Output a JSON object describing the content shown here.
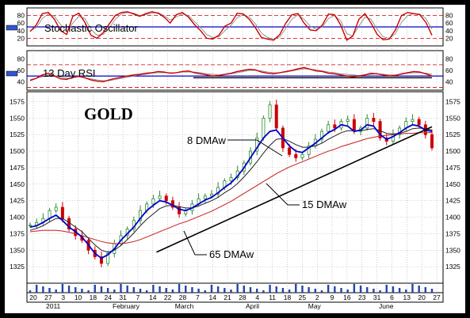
{
  "chart_data": [
    {
      "type": "line",
      "panel": "stochastic",
      "label": "Stochastic Oscillator",
      "yticks": [
        20,
        40,
        60,
        80
      ],
      "ylim": [
        0,
        100
      ],
      "reference_lines": [
        20,
        50,
        80
      ],
      "series": [
        {
          "values": [
            38,
            55,
            85,
            88,
            70,
            40,
            30,
            78,
            86,
            62,
            28,
            20,
            35,
            58,
            80,
            88,
            90,
            84,
            78,
            85,
            90,
            86,
            76,
            60,
            82,
            88,
            76,
            56,
            40,
            20,
            18,
            28,
            52,
            60,
            86,
            84,
            70,
            48,
            22,
            18,
            15,
            30,
            60,
            82,
            85,
            60,
            42,
            40,
            55,
            84,
            82,
            55,
            15,
            26,
            70,
            85,
            60,
            30,
            16,
            18,
            42,
            80,
            88,
            85,
            82,
            62,
            28
          ]
        },
        {
          "values": [
            40,
            48,
            72,
            84,
            78,
            56,
            38,
            60,
            78,
            72,
            44,
            28,
            30,
            48,
            70,
            84,
            88,
            86,
            80,
            82,
            86,
            88,
            80,
            68,
            76,
            84,
            80,
            64,
            48,
            30,
            22,
            24,
            40,
            54,
            74,
            82,
            76,
            58,
            34,
            22,
            18,
            24,
            46,
            70,
            82,
            70,
            52,
            44,
            50,
            72,
            80,
            66,
            32,
            26,
            52,
            76,
            70,
            44,
            24,
            20,
            32,
            62,
            80,
            85,
            84,
            72,
            44
          ]
        }
      ]
    },
    {
      "type": "line",
      "panel": "rsi",
      "label": "13 Day RSI",
      "yticks": [
        40,
        60,
        80
      ],
      "ylim": [
        25,
        95
      ],
      "reference_lines": [
        30,
        50,
        70
      ],
      "support_line": 47,
      "series": [
        {
          "values": [
            42,
            46,
            52,
            55,
            50,
            45,
            44,
            48,
            50,
            47,
            43,
            41,
            40,
            43,
            46,
            48,
            50,
            52,
            53,
            55,
            56,
            58,
            57,
            55,
            56,
            58,
            59,
            56,
            54,
            52,
            50,
            51,
            53,
            55,
            58,
            60,
            62,
            61,
            57,
            55,
            54,
            56,
            58,
            60,
            63,
            65,
            62,
            59,
            58,
            55,
            54,
            52,
            50,
            49,
            50,
            52,
            55,
            54,
            52,
            50,
            51,
            54,
            56,
            58,
            57,
            54,
            50
          ]
        },
        {
          "values": [
            44,
            46,
            49,
            52,
            51,
            48,
            46,
            47,
            48,
            47,
            45,
            43,
            42,
            42,
            44,
            46,
            48,
            50,
            52,
            53,
            55,
            56,
            56,
            56,
            56,
            57,
            57,
            57,
            56,
            54,
            53,
            52,
            53,
            54,
            56,
            58,
            60,
            60,
            59,
            57,
            56,
            56,
            57,
            59,
            61,
            63,
            62,
            61,
            59,
            57,
            56,
            54,
            53,
            52,
            51,
            52,
            53,
            54,
            53,
            52,
            52,
            53,
            55,
            56,
            56,
            55,
            53
          ]
        }
      ]
    },
    {
      "type": "line",
      "panel": "price",
      "title": "GOLD",
      "yticks": [
        1325,
        1350,
        1375,
        1400,
        1425,
        1450,
        1475,
        1500,
        1525,
        1550,
        1575
      ],
      "ylim": [
        1300,
        1590
      ],
      "month_labels": [
        "2011",
        "February",
        "March",
        "April",
        "May",
        "June"
      ],
      "day_labels": [
        "20",
        "27",
        "3",
        "10",
        "18",
        "24",
        "31",
        "7",
        "14",
        "22",
        "28",
        "7",
        "14",
        "21",
        "28",
        "4",
        "11",
        "18",
        "25",
        "2",
        "9",
        "16",
        "23",
        "31",
        "6",
        "13",
        "20",
        "27"
      ],
      "series": [
        {
          "name": "8 DMAw",
          "values": [
            1385,
            1387,
            1392,
            1398,
            1403,
            1395,
            1385,
            1378,
            1370,
            1358,
            1345,
            1338,
            1343,
            1352,
            1365,
            1375,
            1385,
            1398,
            1410,
            1418,
            1425,
            1423,
            1418,
            1412,
            1410,
            1414,
            1420,
            1426,
            1430,
            1437,
            1445,
            1452,
            1462,
            1475,
            1490,
            1505,
            1520,
            1530,
            1532,
            1520,
            1508,
            1500,
            1498,
            1505,
            1512,
            1520,
            1528,
            1533,
            1540,
            1538,
            1530,
            1532,
            1540,
            1538,
            1525,
            1518,
            1522,
            1528,
            1535,
            1540,
            1538,
            1532,
            1530
          ]
        },
        {
          "name": "15 DMAw",
          "values": [
            1380,
            1383,
            1387,
            1393,
            1398,
            1398,
            1392,
            1385,
            1378,
            1368,
            1358,
            1350,
            1347,
            1350,
            1357,
            1366,
            1376,
            1387,
            1397,
            1405,
            1413,
            1417,
            1418,
            1416,
            1414,
            1414,
            1417,
            1421,
            1425,
            1430,
            1437,
            1443,
            1451,
            1461,
            1472,
            1484,
            1497,
            1509,
            1518,
            1519,
            1515,
            1510,
            1506,
            1506,
            1508,
            1512,
            1518,
            1523,
            1528,
            1531,
            1531,
            1531,
            1533,
            1534,
            1531,
            1527,
            1526,
            1527,
            1530,
            1534,
            1535,
            1534,
            1532
          ]
        },
        {
          "name": "65 DMAw",
          "values": [
            1378,
            1379,
            1380,
            1380,
            1380,
            1379,
            1377,
            1375,
            1372,
            1369,
            1366,
            1363,
            1361,
            1360,
            1360,
            1361,
            1363,
            1366,
            1370,
            1374,
            1378,
            1382,
            1386,
            1390,
            1393,
            1397,
            1401,
            1405,
            1409,
            1414,
            1419,
            1424,
            1430,
            1436,
            1442,
            1448,
            1454,
            1460,
            1466,
            1471,
            1476,
            1480,
            1484,
            1488,
            1492,
            1496,
            1500,
            1503,
            1507,
            1510,
            1513,
            1516,
            1519,
            1521,
            1523,
            1524,
            1525,
            1526,
            1527,
            1527,
            1528,
            1528,
            1528
          ]
        },
        {
          "name": "price",
          "values": [
            1388,
            1392,
            1398,
            1410,
            1415,
            1398,
            1382,
            1372,
            1365,
            1350,
            1340,
            1330,
            1345,
            1360,
            1372,
            1382,
            1395,
            1410,
            1420,
            1428,
            1432,
            1425,
            1415,
            1405,
            1410,
            1420,
            1428,
            1432,
            1435,
            1445,
            1455,
            1460,
            1470,
            1482,
            1500,
            1520,
            1550,
            1570,
            1535,
            1505,
            1495,
            1490,
            1495,
            1508,
            1518,
            1530,
            1540,
            1535,
            1545,
            1548,
            1530,
            1535,
            1550,
            1545,
            1520,
            1515,
            1525,
            1535,
            1545,
            1548,
            1540,
            1525,
            1505
          ]
        }
      ],
      "annotations": [
        {
          "text": "8 DMAw"
        },
        {
          "text": "15 DMAw"
        },
        {
          "text": "65 DMAw"
        }
      ],
      "trendline": {
        "start": 1347,
        "end": 1537
      }
    }
  ],
  "colors": {
    "up": "#2e8b2e",
    "down": "#cc0000",
    "ma_fast": "#0000cc",
    "ma_mid": "#000000",
    "ma_slow": "#cc3333",
    "ref_dash": "#cc0000",
    "stoch_signal": "#0000aa"
  }
}
